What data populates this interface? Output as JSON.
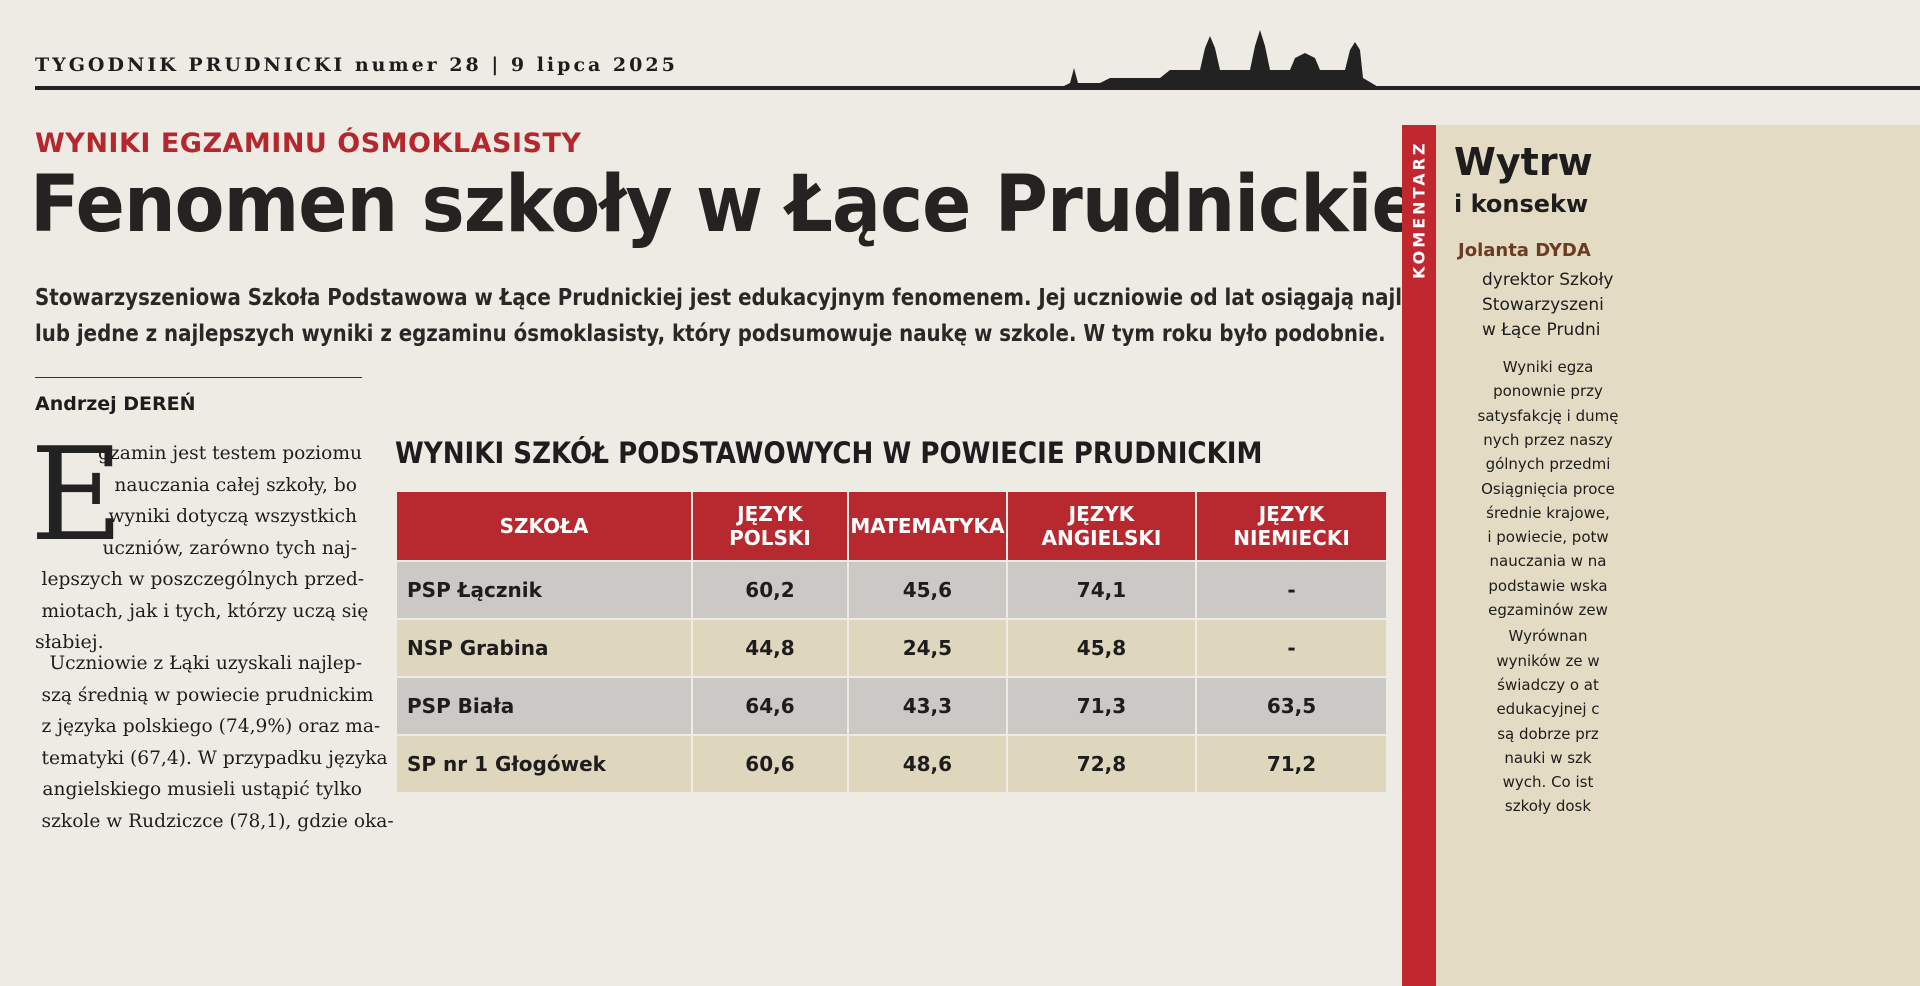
{
  "header": {
    "masthead": "TYGODNIK PRUDNICKI numer 28 | 9 lipca 2025"
  },
  "article": {
    "kicker": "WYNIKI EGZAMINU ÓSMOKLASISTY",
    "headline": "Fenomen szkoły w Łące Prudnickiej",
    "lead": [
      "Stowarzyszeniowa Szkoła Podstawowa w Łące Prudnickiej jest edukacyjnym fenomenem. Jej uczniowie od lat osiągają najlepsze",
      "lub jedne z najlepszych wyniki z egzaminu ósmoklasisty, który podsumowuje naukę w szkole. W tym roku było podobnie."
    ],
    "author": "Andrzej DEREŃ",
    "drop_cap": "E",
    "paragraph1": [
      "gzamin jest testem poziomu",
      "nauczania całej szkoły, bo",
      "wyniki dotyczą wszystkich",
      "uczniów, zarówno tych naj-",
      "lepszych w poszczególnych przed-",
      "miotach, jak i tych, którzy uczą się",
      "słabiej."
    ],
    "paragraph2": [
      "Uczniowie z Łąki uzyskali najlep-",
      "szą średnią w powiecie prudnickim",
      "z języka polskiego (74,9%) oraz ma-",
      "tematyki (67,4). W przypadku języka",
      "angielskiego musieli ustąpić tylko",
      "szkole w Rudziczce (78,1), gdzie oka-"
    ]
  },
  "table": {
    "title": "WYNIKI SZKÓŁ PODSTAWOWYCH W POWIECIE PRUDNICKIM",
    "columns": [
      "SZKOŁA",
      "JĘZYK POLSKI",
      "MATEMATYKA",
      "JĘZYK ANGIELSKI",
      "JĘZYK NIEMIECKI"
    ],
    "rows": [
      [
        "PSP Łącznik",
        "60,2",
        "45,6",
        "74,1",
        "-"
      ],
      [
        "NSP Grabina",
        "44,8",
        "24,5",
        "45,8",
        "-"
      ],
      [
        "PSP Biała",
        "64,6",
        "43,3",
        "71,3",
        "63,5"
      ],
      [
        "SP nr 1 Głogówek",
        "60,6",
        "48,6",
        "72,8",
        "71,2"
      ]
    ]
  },
  "sidebar": {
    "label": "KOMENTARZ",
    "title": [
      "Wytrw",
      "i konsekw"
    ],
    "author": "Jolanta DYDA",
    "role": [
      "dyrektor Szkoły",
      "Stowarzyszeni",
      "w Łące Prudni"
    ],
    "text": [
      "Wyniki egza",
      "ponownie przy",
      "satysfakcję i dumę",
      "nych przez naszy",
      "gólnych przedmi",
      "Osiągnięcia proce",
      "średnie krajowe,",
      "i powiecie, potw",
      "nauczania w na",
      "podstawie wska",
      "egzaminów zew",
      "Wyrównan",
      "wyników ze w",
      "świadczy o at",
      "edukacyjnej c",
      "są dobrze prz",
      "nauki w szk",
      "wych. Co ist",
      "szkoły dosk"
    ]
  }
}
